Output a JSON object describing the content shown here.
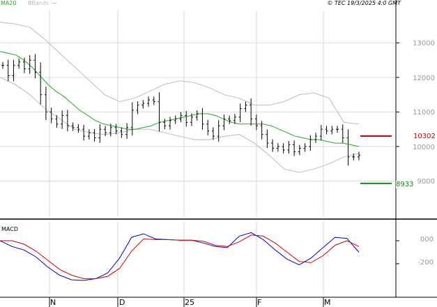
{
  "header": {
    "legend_ma": "MA20",
    "legend_bbands": "BBands",
    "copyright": "© TEC 19/3/2025 4:0 GMT",
    "macd_title": "MACD"
  },
  "colors": {
    "price": "#000000",
    "ma20": "#22aa22",
    "bbands": "#bbbbbb",
    "resistance": "#cc0000",
    "support": "#118811",
    "macd": "#0000cc",
    "signal": "#cc0000",
    "grid": "#bbbbbb"
  },
  "chart_data": [
    {
      "type": "ohlc",
      "title": "",
      "x_tick_labels": [
        "N",
        "D",
        "25",
        "F",
        "M"
      ],
      "ylim": [
        8200,
        13600
      ],
      "y_ticks": [
        9000,
        10000,
        11000,
        12000,
        13000
      ],
      "y_tick_labels": [
        "9000",
        "10000",
        "11000",
        "12000",
        "13000"
      ],
      "grid": true,
      "closes": [
        12350,
        12050,
        12350,
        12450,
        12250,
        12500,
        12150,
        11500,
        11000,
        10800,
        10650,
        10900,
        10600,
        10550,
        10500,
        10300,
        10400,
        10250,
        10500,
        10400,
        10550,
        10450,
        10350,
        10550,
        11050,
        11200,
        11250,
        11350,
        11300,
        10700,
        10600,
        10750,
        10800,
        10900,
        10700,
        10850,
        10950,
        10650,
        10450,
        10300,
        10600,
        10800,
        10750,
        10850,
        11100,
        11200,
        10800,
        10600,
        10350,
        10100,
        9950,
        10000,
        9900,
        10050,
        9850,
        9950,
        10000,
        10200,
        10300,
        10500,
        10450,
        10500,
        10500,
        10250,
        9700,
        9700,
        9750
      ],
      "series": [
        {
          "name": "MA20",
          "values": [
            12750,
            12700,
            12650,
            12500,
            12300,
            12050,
            11800,
            11600,
            11450,
            11250,
            11050,
            10900,
            10750,
            10650,
            10600,
            10550,
            10500,
            10500,
            10550,
            10600,
            10700,
            10750,
            10800,
            10850,
            10900,
            10950,
            10950,
            10900,
            10800,
            10700,
            10650,
            10650,
            10650,
            10650,
            10600,
            10500,
            10400,
            10300,
            10250,
            10200,
            10200,
            10150,
            10100,
            10100,
            10050,
            10000
          ]
        }
      ],
      "bbands": {
        "upper": [
          13600,
          13550,
          13450,
          13100,
          12700,
          12300,
          11900,
          11500,
          11300,
          11400,
          11600,
          11800,
          11900,
          11850,
          11700,
          11500,
          11400,
          11200,
          11200,
          11300,
          11500,
          11550,
          11400,
          10700,
          10650
        ],
        "lower": [
          12000,
          11800,
          11500,
          11100,
          10800,
          10500,
          10400,
          10350,
          10400,
          10500,
          10500,
          10400,
          10300,
          10200,
          10200,
          10300,
          10350,
          10100,
          9750,
          9350,
          9250,
          9350,
          9500,
          9700,
          9800
        ]
      },
      "resistance": {
        "value": 10302,
        "label": "10302"
      },
      "support": {
        "value": 8933,
        "label": "8933"
      }
    },
    {
      "type": "line",
      "title": "MACD",
      "ylim": [
        -330,
        220
      ],
      "y_ticks": [
        0,
        -200
      ],
      "y_tick_labels": [
        "000",
        "-200"
      ],
      "series": [
        {
          "name": "",
          "values": [
            0,
            -50,
            -80,
            -140,
            -230,
            -300,
            -340,
            -345,
            -330,
            -280,
            -150,
            30,
            60,
            15,
            10,
            5,
            5,
            -20,
            -50,
            -60,
            40,
            70,
            10,
            -80,
            -160,
            -210,
            -150,
            -60,
            30,
            20,
            -100
          ]
        },
        {
          "name": "",
          "values": [
            0,
            0,
            -30,
            -90,
            -170,
            -250,
            -300,
            -330,
            -330,
            -310,
            -240,
            -90,
            15,
            10,
            10,
            5,
            5,
            -5,
            -40,
            -50,
            -10,
            50,
            40,
            -20,
            -100,
            -180,
            -190,
            -130,
            -40,
            0,
            -50
          ]
        }
      ]
    }
  ]
}
